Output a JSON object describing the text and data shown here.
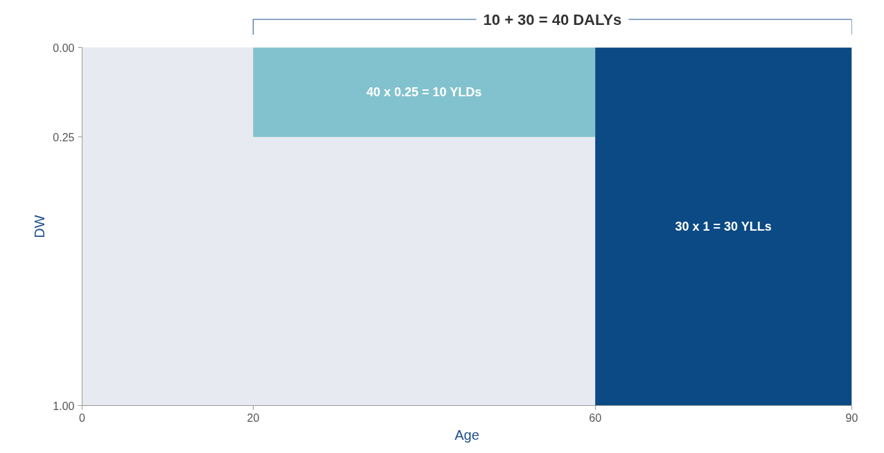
{
  "chart_data": {
    "type": "area",
    "title": "10 + 30 = 40 DALYs",
    "xlabel": "Age",
    "ylabel": "DW",
    "series": [
      {
        "color": "#82c2ce",
        "x": [
          20,
          60
        ],
        "values": [
          0.25,
          0.25
        ]
      },
      {
        "color": "#0b4a84",
        "x": [
          60,
          90
        ],
        "values": [
          1,
          1
        ]
      }
    ],
    "xlim": [
      0,
      90
    ],
    "ylim": [
      1.0,
      0.0
    ],
    "xticks": [
      0,
      20,
      60,
      90
    ],
    "yticks": [
      {
        "value": 0,
        "label": "0.00"
      },
      {
        "value": 0.25,
        "label": "0.25"
      },
      {
        "value": 1,
        "label": "1.00"
      }
    ],
    "grid": false,
    "annotations": [
      "40 x 0.25 = 10 YLDs",
      "30 x 1 = 30 YLLs"
    ]
  }
}
